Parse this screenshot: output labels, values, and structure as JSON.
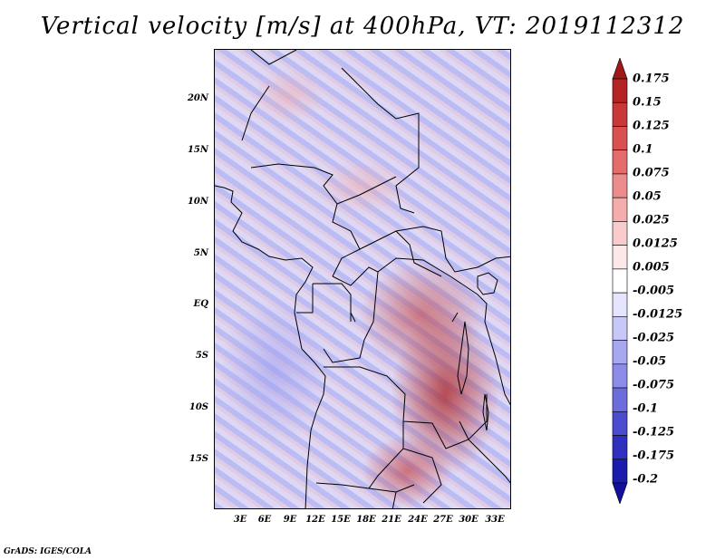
{
  "title": "Vertical velocity [m/s] at 400hPa, VT: 2019112312",
  "footer": "GrADS: IGES/COLA",
  "y_ticks": [
    "20N",
    "15N",
    "10N",
    "5N",
    "EQ",
    "5S",
    "10S",
    "15S"
  ],
  "x_ticks": [
    "3E",
    "6E",
    "9E",
    "12E",
    "15E",
    "18E",
    "21E",
    "24E",
    "27E",
    "30E",
    "33E"
  ],
  "colorbar": {
    "labels": [
      "0.175",
      "0.15",
      "0.125",
      "0.1",
      "0.075",
      "0.05",
      "0.025",
      "0.0125",
      "0.005",
      "-0.005",
      "-0.0125",
      "-0.025",
      "-0.05",
      "-0.075",
      "-0.1",
      "-0.125",
      "-0.175",
      "-0.2"
    ],
    "colors": [
      "#a01818",
      "#b42424",
      "#c83838",
      "#d85050",
      "#e46c6c",
      "#ec8c8c",
      "#f4acac",
      "#f8cccc",
      "#fce8e8",
      "#ffffff",
      "#e4e4fc",
      "#c8c8f8",
      "#a8a8f0",
      "#8c8ce8",
      "#6c6cdc",
      "#4c4cd0",
      "#3030c0",
      "#1c1cac",
      "#10109c"
    ]
  }
}
